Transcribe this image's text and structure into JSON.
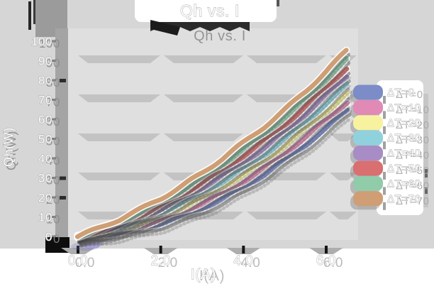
{
  "title": "Qh vs. I",
  "palette": {
    "page_bg": "#ffffff",
    "figure_bg": "#d6d6d6",
    "plot_bg": "#dfdfdf",
    "grid_shadow": "#c3c3c3",
    "axis_bar": "#a4a4a4",
    "shadow_dark": "#1c1c1c",
    "text_fill": "#ffffff",
    "text_outline": "#9d9d9d"
  },
  "chart_data": {
    "type": "line",
    "title": "Qh vs. I",
    "xlabel": "I(A)",
    "ylabel": "Qh(W)",
    "xlim": [
      0,
      6.8
    ],
    "ylim": [
      0,
      100
    ],
    "x_tick_labels": [
      "0.0",
      "2.0",
      "4.0",
      "6.0"
    ],
    "x_tick_values": [
      0,
      2,
      4,
      6
    ],
    "y_tick_labels": [
      "0",
      "10",
      "20",
      "30",
      "40",
      "50",
      "60",
      "70",
      "80",
      "90",
      "100"
    ],
    "y_tick_values": [
      0,
      10,
      20,
      30,
      40,
      50,
      60,
      70,
      80,
      90,
      100
    ],
    "grid": {
      "axis": "y",
      "values": [
        20,
        40,
        60,
        80,
        100
      ],
      "style": "shadow-band"
    },
    "legend_position": "right",
    "style": "sketchy lines with heavy drop shadows",
    "x": [
      0,
      0.5,
      1,
      1.5,
      2,
      2.5,
      3,
      3.5,
      4,
      4.5,
      5,
      5.5,
      6,
      6.5
    ],
    "series": [
      {
        "name": "ΔT=0",
        "color": "#7b8cc8",
        "values": [
          0,
          0.6,
          2.0,
          4.1,
          6.9,
          10.4,
          14.7,
          19.7,
          25.4,
          31.8,
          39.0,
          46.9,
          55.5,
          64.8
        ]
      },
      {
        "name": "ΔT=10",
        "color": "#e18ab5",
        "values": [
          0,
          1.1,
          3.0,
          5.5,
          8.7,
          12.6,
          17.3,
          22.6,
          28.6,
          35.3,
          42.7,
          50.8,
          59.6,
          69.1
        ]
      },
      {
        "name": "ΔT=20",
        "color": "#f6f2a0",
        "values": [
          0,
          1.6,
          3.9,
          6.9,
          10.5,
          14.8,
          19.8,
          25.5,
          31.8,
          38.7,
          46.5,
          54.8,
          63.8,
          73.4
        ]
      },
      {
        "name": "ΔT=30",
        "color": "#8fd2dd",
        "values": [
          0,
          2.1,
          4.9,
          8.3,
          12.3,
          17.0,
          22.4,
          28.4,
          35.0,
          42.2,
          50.2,
          58.7,
          67.9,
          77.7
        ]
      },
      {
        "name": "ΔT=40",
        "color": "#a88cc5",
        "values": [
          0,
          2.6,
          5.8,
          9.7,
          14.2,
          19.2,
          24.9,
          31.2,
          38.2,
          45.7,
          53.9,
          62.7,
          72.1,
          82.1
        ]
      },
      {
        "name": "ΔT=50",
        "color": "#d96f70",
        "values": [
          0,
          3.1,
          6.8,
          11.1,
          16.0,
          21.4,
          27.5,
          34.1,
          41.4,
          49.2,
          57.6,
          66.6,
          76.2,
          86.4
        ]
      },
      {
        "name": "ΔT=60",
        "color": "#90cbaa",
        "values": [
          0,
          3.6,
          7.7,
          12.5,
          17.8,
          23.6,
          30.0,
          37.0,
          44.6,
          52.6,
          61.4,
          70.5,
          80.4,
          90.7
        ]
      },
      {
        "name": "ΔT=70",
        "color": "#cf9e74",
        "values": [
          0,
          4.1,
          8.7,
          13.9,
          19.6,
          25.8,
          32.6,
          39.9,
          47.8,
          56.1,
          65.1,
          74.5,
          84.5,
          95.0
        ]
      }
    ]
  }
}
